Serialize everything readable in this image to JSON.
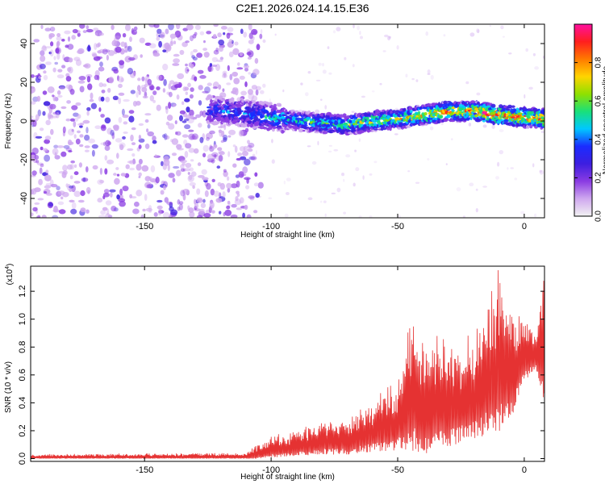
{
  "figure_title": "C2E1.2026.024.14.15.E36",
  "colors": {
    "trace": "#e53232",
    "axis": "#000000",
    "colormap": [
      "#f2f2f2",
      "#cfa8ef",
      "#8a3be2",
      "#3d1ee0",
      "#1a2cff",
      "#00c8ff",
      "#19e07a",
      "#8fe000",
      "#ffd400",
      "#ff7a00",
      "#ff1e1e",
      "#ff10a0"
    ]
  },
  "chart_data": [
    {
      "type": "heatmap",
      "title": "",
      "xlabel": "Height of straight line (km)",
      "ylabel": "Frequency (Hz)",
      "xlim": [
        -195,
        8
      ],
      "ylim": [
        -50,
        50
      ],
      "xticks": [
        -150,
        -100,
        -50,
        0
      ],
      "xtick_labels": [
        "-150",
        "-100",
        "-50",
        "0"
      ],
      "yticks": [
        -40,
        -20,
        0,
        20,
        40
      ],
      "ytick_labels": [
        "-40",
        "-20",
        "0",
        "20",
        "40"
      ],
      "colorbar": {
        "label": "Normalized spectral amplitude",
        "range": [
          0,
          1
        ],
        "ticks": [
          0,
          0.2,
          0.4,
          0.6,
          0.8
        ],
        "tick_labels": [
          "0.0",
          "0.2",
          "0.4",
          "0.6",
          "0.8"
        ]
      },
      "noise_region_km": [
        -195,
        -108
      ],
      "ridge": {
        "x": [
          -125,
          -110,
          -100,
          -90,
          -80,
          -70,
          -60,
          -50,
          -40,
          -30,
          -20,
          -10,
          0,
          8
        ],
        "center_freq": [
          6,
          4,
          2,
          0,
          -1,
          -2,
          0,
          1,
          3,
          5,
          5,
          3,
          2,
          1
        ],
        "amplitude": [
          0.4,
          0.45,
          0.5,
          0.55,
          0.6,
          0.65,
          0.7,
          0.7,
          0.8,
          0.85,
          0.9,
          0.95,
          0.9,
          0.9
        ]
      }
    },
    {
      "type": "line",
      "title": "",
      "xlabel": "Height of straight line (km)",
      "ylabel": "SNR (10 * v/v)",
      "scale_label": "(x10",
      "scale_exponent": "4",
      "scale_close": ")",
      "xlim": [
        -195,
        8
      ],
      "ylim": [
        -0.02,
        1.38
      ],
      "xticks": [
        -150,
        -100,
        -50,
        0
      ],
      "xtick_labels": [
        "-150",
        "-100",
        "-50",
        "0"
      ],
      "yticks": [
        0,
        0.2,
        0.4,
        0.6,
        0.8,
        1.0,
        1.2
      ],
      "ytick_labels": [
        "0.0",
        "0.2",
        "0.4",
        "0.6",
        "0.8",
        "1.0",
        "1.2"
      ],
      "envelope": {
        "x": [
          -195,
          -110,
          -105,
          -100,
          -90,
          -80,
          -70,
          -60,
          -50,
          -45,
          -40,
          -30,
          -20,
          -15,
          -10,
          -5,
          0,
          5,
          8
        ],
        "upper": [
          0.03,
          0.04,
          0.1,
          0.15,
          0.2,
          0.25,
          0.3,
          0.4,
          0.55,
          1.05,
          0.85,
          0.8,
          0.85,
          1.1,
          1.35,
          1.0,
          1.0,
          0.9,
          1.38
        ],
        "lower": [
          0.0,
          0.0,
          0.0,
          0.02,
          0.03,
          0.05,
          0.05,
          0.08,
          0.1,
          0.15,
          0.1,
          0.15,
          0.2,
          0.25,
          0.3,
          0.35,
          0.6,
          0.65,
          0.45
        ]
      }
    }
  ]
}
